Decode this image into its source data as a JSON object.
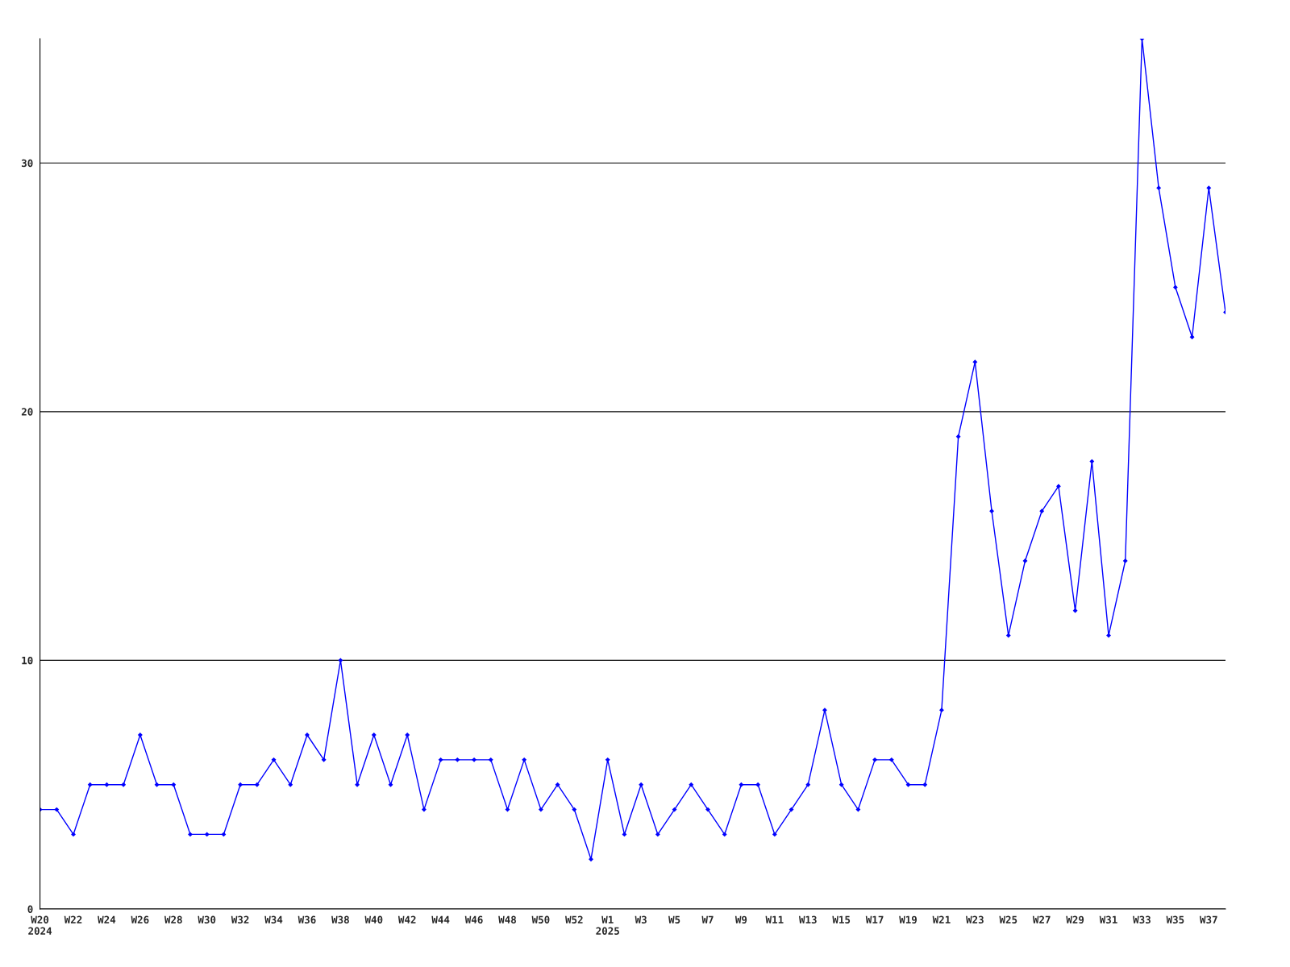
{
  "chart_data": {
    "type": "line",
    "categories": [
      "W20\n2024",
      null,
      "W22",
      null,
      "W24",
      null,
      "W26",
      null,
      "W28",
      null,
      "W30",
      null,
      "W32",
      null,
      "W34",
      null,
      "W36",
      null,
      "W38",
      null,
      "W40",
      null,
      "W42",
      null,
      "W44",
      null,
      "W46",
      null,
      "W48",
      null,
      "W50",
      null,
      "W52",
      null,
      "W1\n2025",
      null,
      "W3",
      null,
      "W5",
      null,
      "W7",
      null,
      "W9",
      null,
      "W11",
      null,
      "W13",
      null,
      "W15",
      null,
      "W17",
      null,
      "W19",
      null,
      "W21",
      null,
      "W23",
      null,
      "W25",
      null,
      "W27",
      null,
      "W29",
      null,
      "W31",
      null,
      "W33",
      null,
      "W35",
      null,
      "W37",
      null
    ],
    "series": [
      {
        "color": "#0000ff",
        "values": [
          4,
          4,
          3,
          5,
          5,
          5,
          7,
          5,
          5,
          3,
          3,
          3,
          5,
          5,
          6,
          5,
          7,
          6,
          10,
          5,
          7,
          5,
          7,
          4,
          6,
          6,
          6,
          6,
          4,
          6,
          4,
          5,
          4,
          2,
          6,
          3,
          5,
          3,
          4,
          5,
          4,
          3,
          5,
          5,
          3,
          4,
          5,
          8,
          5,
          4,
          6,
          6,
          5,
          5,
          8,
          19,
          22,
          16,
          11,
          14,
          16,
          17,
          12,
          18,
          11,
          14,
          35,
          29,
          25,
          23,
          29,
          24
        ]
      }
    ],
    "ylim": [
      0,
      35
    ],
    "yticks": [
      0,
      10,
      20,
      30
    ],
    "grid": "y",
    "marker": "diamond",
    "line_style": "solid"
  }
}
